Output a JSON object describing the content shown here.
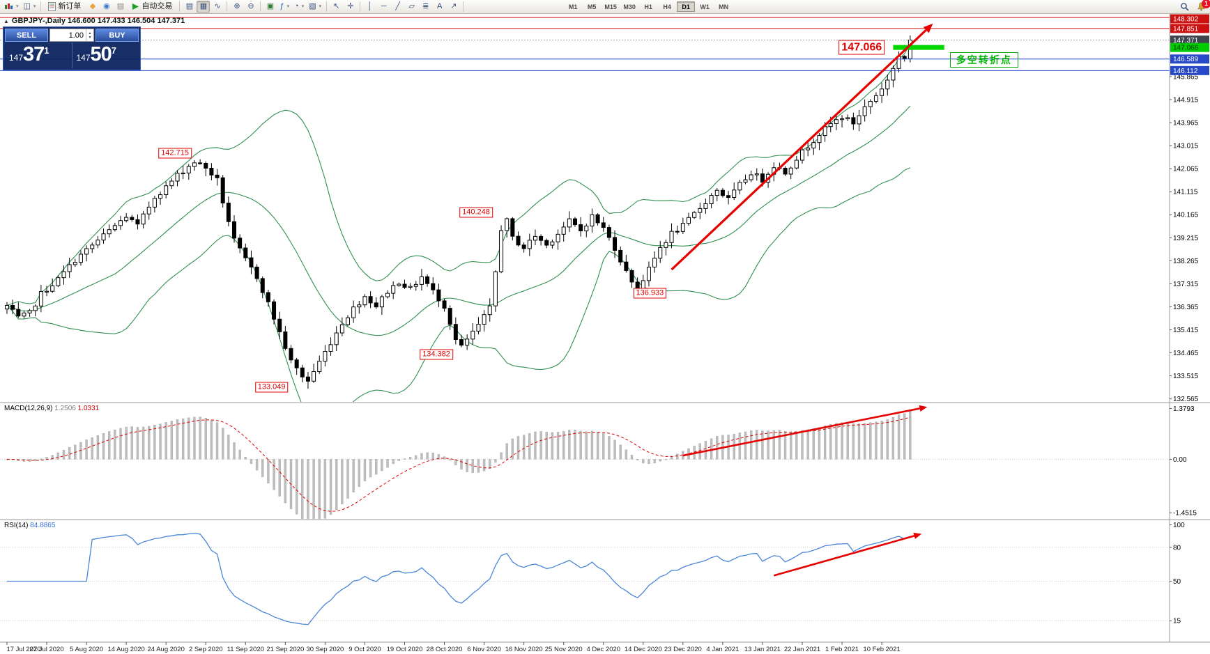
{
  "colors": {
    "accent_red": "#e60000",
    "accent_green": "#00d800",
    "accent_blue": "#2749c8",
    "bid_label_bg": "#3f4650",
    "bollinger": "#2f8f4f",
    "rsi_line": "#4a86d8",
    "macd_hist": "#bdbdbd",
    "macd_signal": "#e00000"
  },
  "icons": {
    "collapse": "▲",
    "caret": "▾",
    "profiles": "◫",
    "market": "◆",
    "signals": "◉",
    "calendar": "▤",
    "chart_bars": "▤",
    "chart_candles": "▦",
    "chart_line": "∿",
    "zoom_in": "⊕",
    "zoom_out": "⊖",
    "tile_windows": "▣",
    "indicators": "ƒ",
    "periods": "◔",
    "templates": "▧",
    "cursor": "↖",
    "crosshair": "✛",
    "vline": "│",
    "hline": "─",
    "trendline": "╱",
    "channel": "▱",
    "fibo": "≣",
    "text_tool": "A",
    "arrow_tool": "↗",
    "spin_up": "▲",
    "spin_down": "▼"
  },
  "toolbar": {
    "new_order_label": "新订单",
    "autotrade_label": "自动交易",
    "timeframes": [
      "M1",
      "M5",
      "M15",
      "M30",
      "H1",
      "H4",
      "D1",
      "W1",
      "MN"
    ],
    "active_timeframe": "D1",
    "notification_badge": "1"
  },
  "chart_header": {
    "title": "GBPJPY-,Daily 146.600 147.433 146.504 147.371"
  },
  "trade_panel": {
    "sell_label": "SELL",
    "buy_label": "BUY",
    "volume": "1.00",
    "sell_price_main": "147",
    "sell_price_big": "37",
    "sell_price_sup": "1",
    "buy_price_main": "147",
    "buy_price_big": "50",
    "buy_price_sup": "7"
  },
  "indicators": {
    "macd_name": "MACD(12,26,9)",
    "macd_value": "1.2506",
    "macd_signal": "1.0331",
    "rsi_name": "RSI(14)",
    "rsi_value": "84.8865"
  },
  "price_axis": {
    "grid_labels": [
      "145.865",
      "144.915",
      "143.965",
      "143.015",
      "142.065",
      "141.115",
      "140.165",
      "139.215",
      "138.265",
      "137.315",
      "136.365",
      "135.415",
      "134.465",
      "133.515",
      "132.565"
    ],
    "special_labels": [
      {
        "text": "148.302",
        "value": 148.302,
        "bg": "#cc1111",
        "fg": "#ffffff",
        "line_color": "#cc1111",
        "dash": ""
      },
      {
        "text": "147.851",
        "value": 147.851,
        "bg": "#cc1111",
        "fg": "#ffffff",
        "line_color": "#cc1111",
        "dash": ""
      },
      {
        "text": "147.371",
        "value": 147.371,
        "bg": "#3f4650",
        "fg": "#ffffff",
        "line_color": "#98a4b2",
        "dash": "2,2"
      },
      {
        "text": "147.066",
        "value": 147.066,
        "bg": "#00cc00",
        "fg": "#00320a",
        "line_color": "",
        "dash": ""
      },
      {
        "text": "146.589",
        "value": 146.589,
        "bg": "#2749c8",
        "fg": "#ffffff",
        "line_color": "#2749c8",
        "dash": ""
      },
      {
        "text": "146.112",
        "value": 146.112,
        "bg": "#2749c8",
        "fg": "#ffffff",
        "line_color": "#2749c8",
        "dash": ""
      }
    ]
  },
  "macd_axis": [
    "1.3793",
    "0.00",
    "-1.4515"
  ],
  "rsi_axis": [
    "100",
    "80",
    "50",
    "15"
  ],
  "time_axis": [
    "17 Jul 2020",
    "27 Jul 2020",
    "5 Aug 2020",
    "14 Aug 2020",
    "24 Aug 2020",
    "2 Sep 2020",
    "11 Sep 2020",
    "21 Sep 2020",
    "30 Sep 2020",
    "9 Oct 2020",
    "19 Oct 2020",
    "28 Oct 2020",
    "6 Nov 2020",
    "16 Nov 2020",
    "25 Nov 2020",
    "4 Dec 2020",
    "14 Dec 2020",
    "23 Dec 2020",
    "4 Jan 2021",
    "13 Jan 2021",
    "22 Jan 2021",
    "1 Feb 2021",
    "10 Feb 2021"
  ],
  "chart_data": {
    "type": "candlestick",
    "symbol": "GBPJPY-",
    "timeframe": "Daily",
    "current_ohlc": {
      "open": 146.6,
      "high": 147.433,
      "low": 146.504,
      "close": 147.371
    },
    "candles_count": 160,
    "price_axis_range": [
      132.44,
      148.45
    ],
    "price_path_anchors": [
      [
        0,
        136.4
      ],
      [
        2,
        135.9
      ],
      [
        4,
        136.1
      ],
      [
        6,
        136.9
      ],
      [
        9,
        137.5
      ],
      [
        12,
        138.3
      ],
      [
        15,
        138.9
      ],
      [
        18,
        139.5
      ],
      [
        21,
        140.1
      ],
      [
        23,
        139.7
      ],
      [
        26,
        140.9
      ],
      [
        28,
        141.3
      ],
      [
        30,
        141.8
      ],
      [
        33,
        142.35
      ],
      [
        35,
        142.1
      ],
      [
        37,
        141.6
      ],
      [
        38,
        140.7
      ],
      [
        40,
        139.1
      ],
      [
        42,
        138.3
      ],
      [
        44,
        137.6
      ],
      [
        46,
        136.5
      ],
      [
        48,
        135.3
      ],
      [
        50,
        134.1
      ],
      [
        52,
        133.5
      ],
      [
        53,
        133.3
      ],
      [
        55,
        134.1
      ],
      [
        57,
        134.9
      ],
      [
        59,
        135.7
      ],
      [
        61,
        136.3
      ],
      [
        63,
        136.8
      ],
      [
        65,
        136.4
      ],
      [
        67,
        137.0
      ],
      [
        69,
        137.4
      ],
      [
        71,
        137.1
      ],
      [
        73,
        137.6
      ],
      [
        75,
        137.0
      ],
      [
        77,
        136.4
      ],
      [
        79,
        135.0
      ],
      [
        80,
        134.7
      ],
      [
        81,
        135.0
      ],
      [
        83,
        135.6
      ],
      [
        85,
        136.3
      ],
      [
        86,
        137.8
      ],
      [
        87,
        139.6
      ],
      [
        88,
        139.9
      ],
      [
        89,
        139.2
      ],
      [
        91,
        138.8
      ],
      [
        93,
        139.3
      ],
      [
        95,
        138.9
      ],
      [
        97,
        139.4
      ],
      [
        99,
        139.9
      ],
      [
        101,
        139.5
      ],
      [
        103,
        140.1
      ],
      [
        105,
        139.6
      ],
      [
        107,
        138.8
      ],
      [
        109,
        137.8
      ],
      [
        111,
        137.1
      ],
      [
        113,
        137.9
      ],
      [
        115,
        138.8
      ],
      [
        117,
        139.4
      ],
      [
        119,
        139.7
      ],
      [
        121,
        140.2
      ],
      [
        123,
        140.7
      ],
      [
        125,
        141.2
      ],
      [
        127,
        140.8
      ],
      [
        129,
        141.4
      ],
      [
        131,
        141.9
      ],
      [
        133,
        141.6
      ],
      [
        135,
        142.2
      ],
      [
        137,
        141.9
      ],
      [
        139,
        142.5
      ],
      [
        141,
        143.0
      ],
      [
        143,
        143.5
      ],
      [
        145,
        143.9
      ],
      [
        147,
        144.2
      ],
      [
        149,
        143.95
      ],
      [
        151,
        144.6
      ],
      [
        153,
        145.1
      ],
      [
        155,
        145.7
      ],
      [
        156,
        146.2
      ],
      [
        157,
        146.7
      ],
      [
        158,
        146.6
      ],
      [
        159,
        147.371
      ]
    ],
    "overlays": {
      "bollinger_period": 20,
      "bollinger_deviation": 2
    },
    "macd_params": {
      "fast": 12,
      "slow": 26,
      "signal": 9,
      "axis_range": [
        -1.62,
        1.52
      ]
    },
    "rsi_params": {
      "period": 14,
      "axis_range": [
        -4,
        104
      ]
    },
    "annotations": {
      "callouts": [
        {
          "text": "142.715",
          "day": 33,
          "price": 142.715,
          "align": "right",
          "large": false
        },
        {
          "text": "140.248",
          "day": 86,
          "price": 140.248,
          "align": "right",
          "large": false
        },
        {
          "text": "136.933",
          "day": 110,
          "price": 136.933,
          "align": "left",
          "large": false
        },
        {
          "text": "134.382",
          "day": 79,
          "price": 134.382,
          "align": "right",
          "large": false
        },
        {
          "text": "133.049",
          "day": 50,
          "price": 133.049,
          "align": "right",
          "large": false
        },
        {
          "text": "147.066",
          "day": 155,
          "price": 147.066,
          "align": "right",
          "large": true
        }
      ],
      "green_segment": {
        "price": 147.066,
        "day_from": 156,
        "day_to": 165
      },
      "cn_note": {
        "text": "多空转折点",
        "day": 166,
        "price": 146.55
      },
      "arrows": {
        "main": {
          "from": [
            117,
            137.9
          ],
          "to": [
            163,
            148.05
          ]
        },
        "macd": {
          "from": [
            119,
            0.1
          ],
          "to": [
            162,
            1.42
          ]
        },
        "rsi": {
          "from": [
            135,
            55
          ],
          "to": [
            161,
            92
          ]
        }
      }
    }
  }
}
